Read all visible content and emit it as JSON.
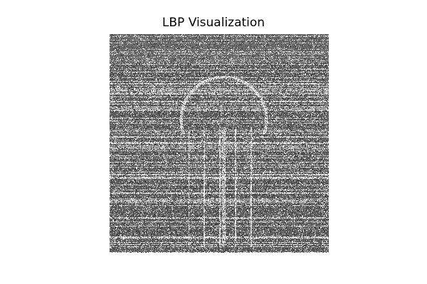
{
  "figure": {
    "title": "LBP Visualization",
    "background_color": "#ffffff"
  },
  "image": {
    "description_icon": "lbp-texture-image",
    "colormap": "gray"
  }
}
